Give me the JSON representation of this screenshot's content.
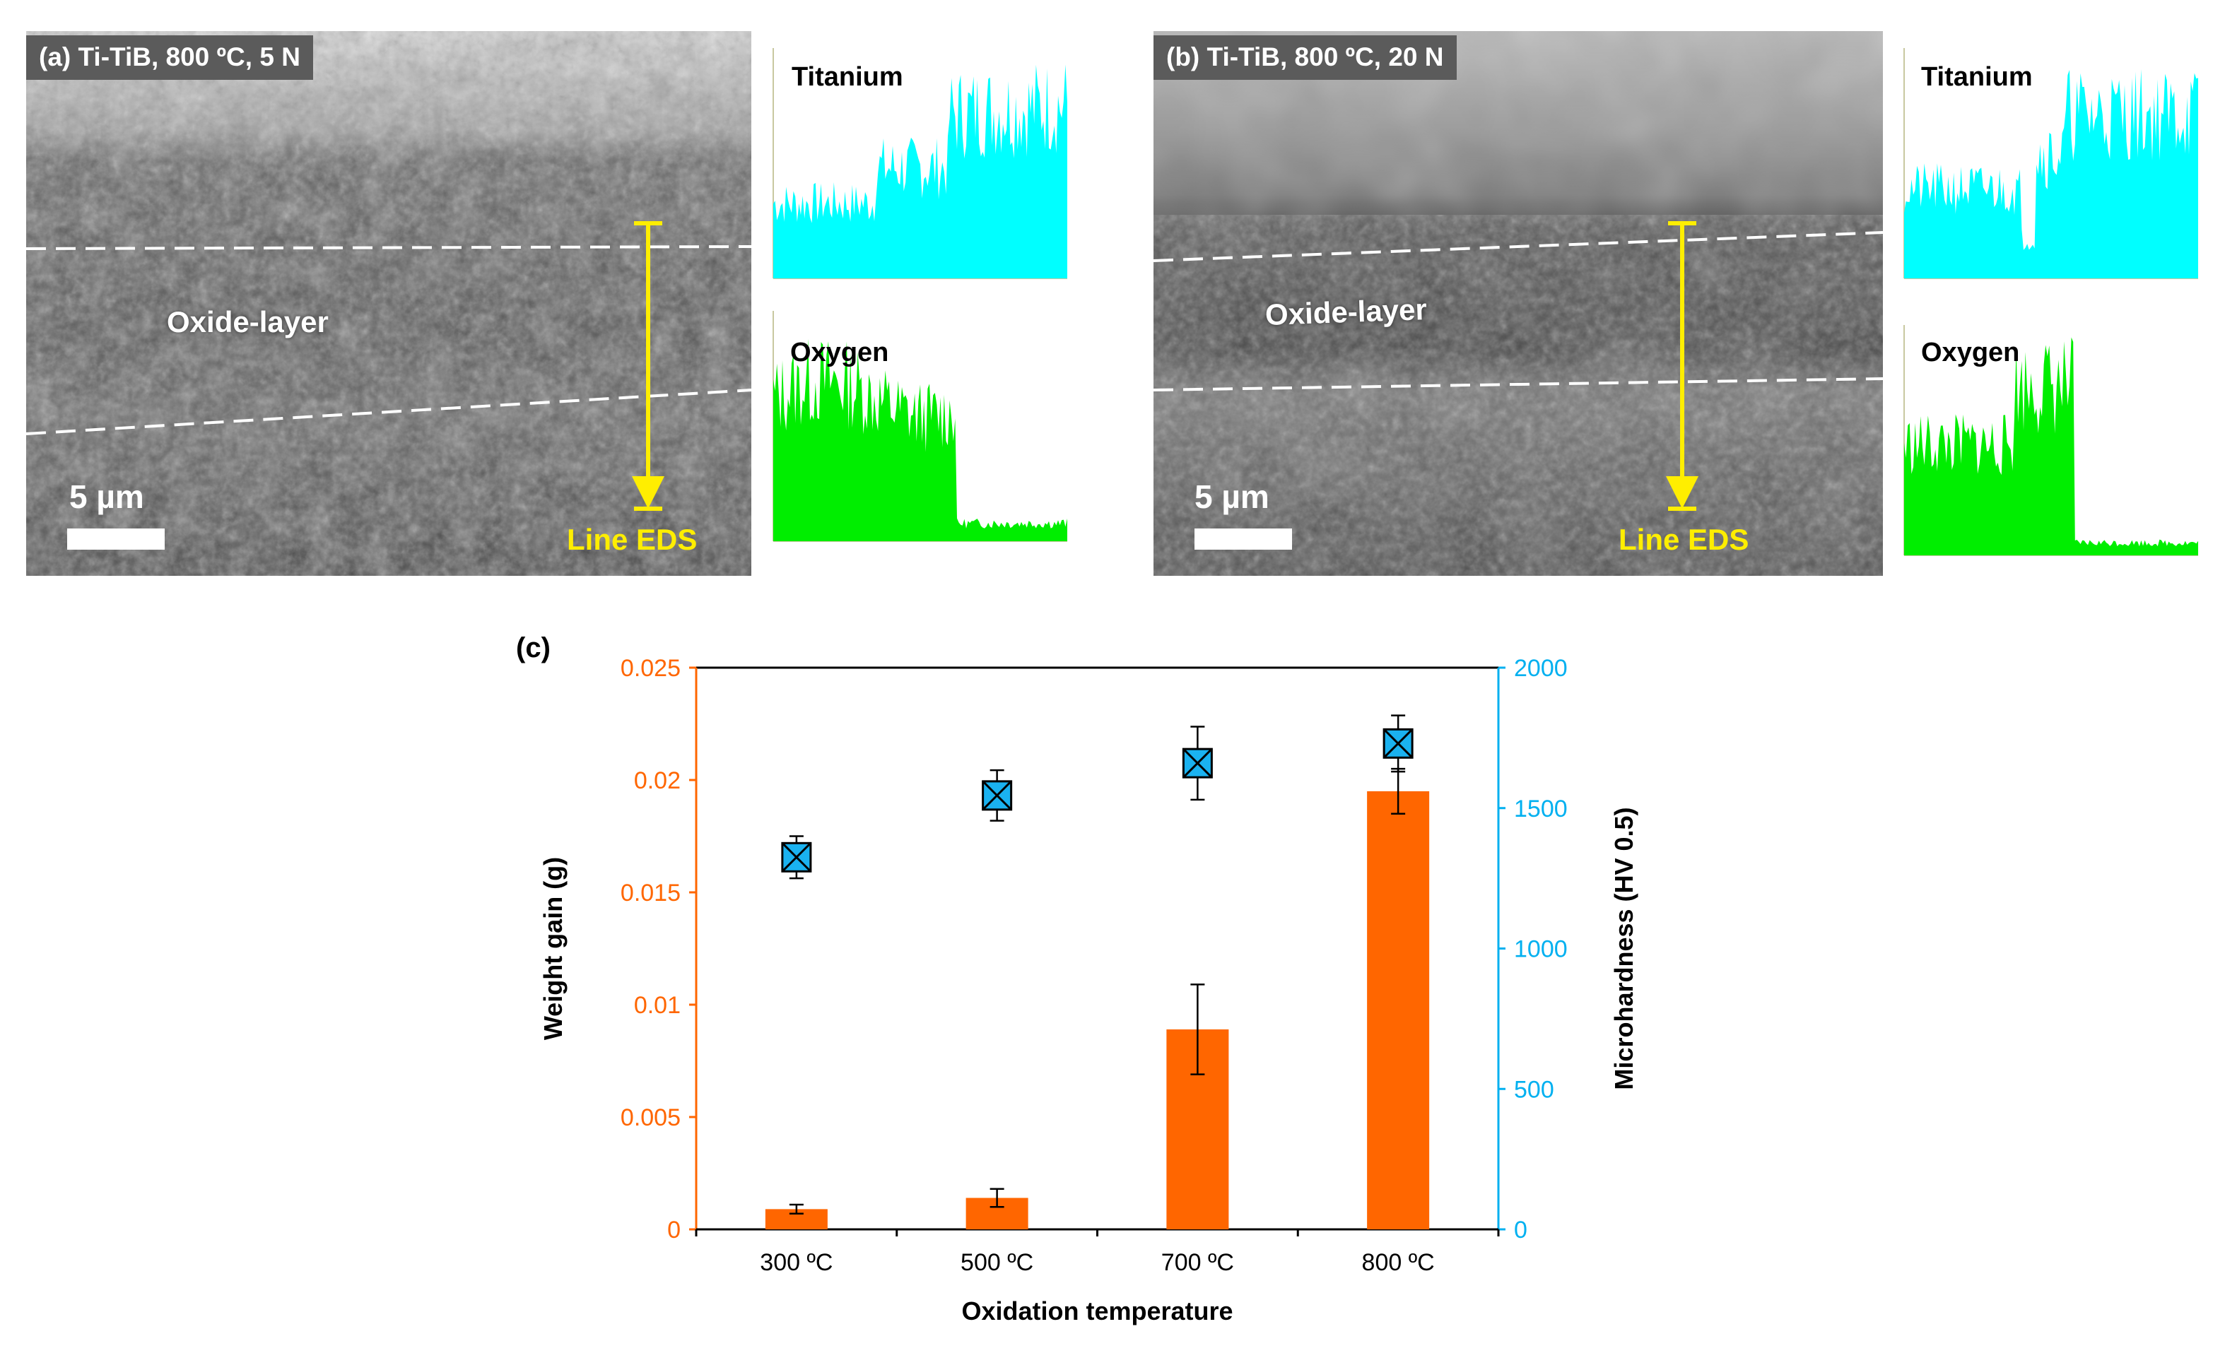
{
  "figure": {
    "panel_a": {
      "label": "(a) Ti-TiB, 800 ºC, 5 N",
      "oxide_label": "Oxide-layer",
      "scale_label": "5 µm",
      "eds_label": "Line EDS",
      "eds_titanium_title": "Titanium",
      "eds_oxygen_title": "Oxygen"
    },
    "panel_b": {
      "label": "(b) Ti-TiB, 800 ºC, 20 N",
      "oxide_label": "Oxide-layer",
      "scale_label": "5 µm",
      "eds_label": "Line EDS",
      "eds_titanium_title": "Titanium",
      "eds_oxygen_title": "Oxygen"
    },
    "panel_c_label": "(c)"
  },
  "colors": {
    "titanium": "#00ffff",
    "oxygen": "#00ee00",
    "eds_arrow": "#ffee00",
    "bar": "#ff6600",
    "marker": "#1ab2f0",
    "left_axis": "#ff6600",
    "right_axis": "#00b0f0"
  },
  "chart_data": {
    "type": "bar",
    "title": "",
    "categories": [
      "300 ºC",
      "500 ºC",
      "700 ºC",
      "800 ºC"
    ],
    "xlabel": "Oxidation temperature",
    "ylabel": "Weight gain (g)",
    "y2label": "Microhardness (HV 0.5)",
    "ylim": [
      0,
      0.025
    ],
    "y2lim": [
      0,
      2000
    ],
    "yticks": [
      "0",
      "0.005",
      "0.01",
      "0.015",
      "0.02",
      "0.025"
    ],
    "y2ticks": [
      "0",
      "500",
      "1000",
      "1500",
      "2000"
    ],
    "series": [
      {
        "name": "Weight gain",
        "kind": "bar",
        "axis": "left",
        "values": [
          0.0009,
          0.0014,
          0.0089,
          0.0195
        ],
        "errors": [
          0.0002,
          0.0004,
          0.002,
          0.001
        ]
      },
      {
        "name": "Microhardness",
        "kind": "marker",
        "axis": "right",
        "values": [
          1325,
          1545,
          1660,
          1730
        ],
        "errors": [
          75,
          90,
          130,
          100
        ]
      }
    ]
  }
}
